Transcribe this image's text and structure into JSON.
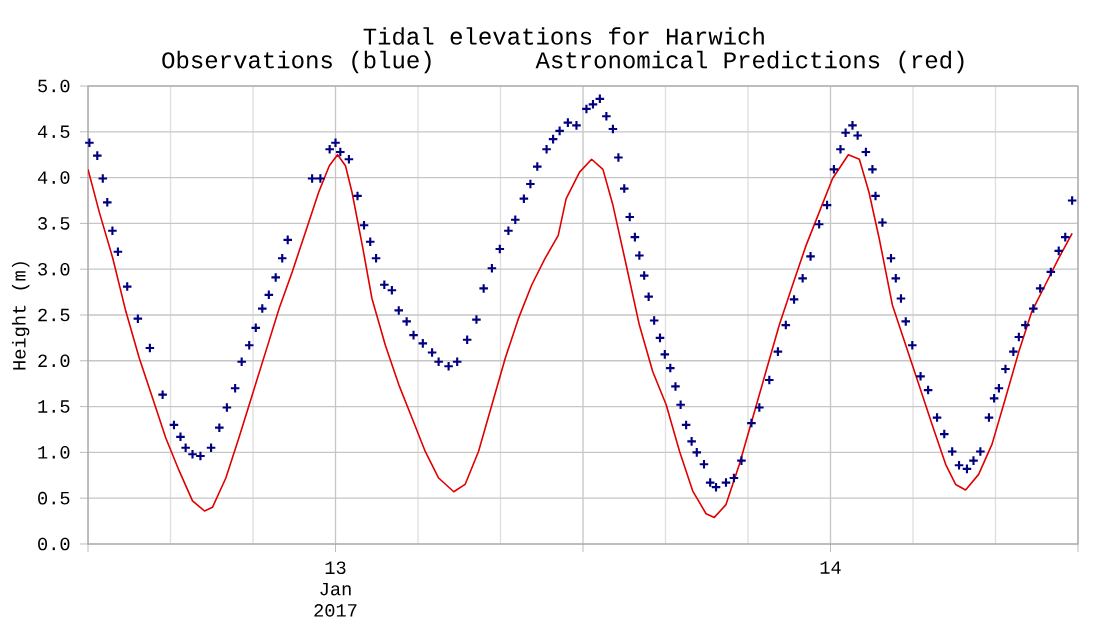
{
  "chart_data": {
    "type": "line",
    "title": "Tidal elevations for Harwich",
    "subtitle": "Observations (blue)       Astronomical Predictions (red)",
    "ylabel": "Height (m)",
    "xlim": [
      "2017-01-12T12:00",
      "2017-01-14T12:00"
    ],
    "xticks": [
      {
        "value": "2017-01-12T12:00",
        "label": null
      },
      {
        "value": "2017-01-13T00:00",
        "label": "13 Jan 2017"
      },
      {
        "value": "2017-01-13T12:00",
        "label": null
      },
      {
        "value": "2017-01-14T00:00",
        "label": "14"
      },
      {
        "value": "2017-01-14T12:00",
        "label": null
      }
    ],
    "ylim": [
      0,
      5
    ],
    "yticks": [
      {
        "value": 0,
        "label": "0.0"
      },
      {
        "value": 0.5,
        "label": "0.5"
      },
      {
        "value": 1,
        "label": "1.0"
      },
      {
        "value": 1.5,
        "label": "1.5"
      },
      {
        "value": 2,
        "label": "2.0"
      },
      {
        "value": 2.5,
        "label": "2.5"
      },
      {
        "value": 3,
        "label": "3.0"
      },
      {
        "value": 3.5,
        "label": "3.5"
      },
      {
        "value": 4,
        "label": "4.0"
      },
      {
        "value": 4.5,
        "label": "4.5"
      },
      {
        "value": 5,
        "label": "5.0"
      }
    ],
    "grid": true,
    "series": [
      {
        "type": "scatter",
        "marker": "cross",
        "color": "#000080",
        "x": [
          "2017-01-12T12:04",
          "2017-01-12T12:27",
          "2017-01-12T12:43",
          "2017-01-12T12:56",
          "2017-01-12T13:11",
          "2017-01-12T13:27",
          "2017-01-12T13:54",
          "2017-01-12T14:25",
          "2017-01-12T15:00",
          "2017-01-12T15:37",
          "2017-01-12T16:10",
          "2017-01-12T16:29",
          "2017-01-12T16:44",
          "2017-01-12T17:04",
          "2017-01-12T17:27",
          "2017-01-12T17:58",
          "2017-01-12T18:22",
          "2017-01-12T18:44",
          "2017-01-12T19:08",
          "2017-01-12T19:27",
          "2017-01-12T19:49",
          "2017-01-12T20:08",
          "2017-01-12T20:27",
          "2017-01-12T20:46",
          "2017-01-12T21:06",
          "2017-01-12T21:25",
          "2017-01-12T21:41",
          "2017-01-12T22:52",
          "2017-01-12T23:16",
          "2017-01-12T23:43",
          "2017-01-13T00:00",
          "2017-01-13T00:14",
          "2017-01-13T00:39",
          "2017-01-13T01:04",
          "2017-01-13T01:23",
          "2017-01-13T01:41",
          "2017-01-13T01:58",
          "2017-01-13T02:22",
          "2017-01-13T02:44",
          "2017-01-13T03:04",
          "2017-01-13T03:27",
          "2017-01-13T03:47",
          "2017-01-13T04:14",
          "2017-01-13T04:41",
          "2017-01-13T05:00",
          "2017-01-13T05:29",
          "2017-01-13T05:54",
          "2017-01-13T06:23",
          "2017-01-13T06:50",
          "2017-01-13T07:11",
          "2017-01-13T07:35",
          "2017-01-13T07:58",
          "2017-01-13T08:23",
          "2017-01-13T08:43",
          "2017-01-13T09:08",
          "2017-01-13T09:27",
          "2017-01-13T09:47",
          "2017-01-13T10:14",
          "2017-01-13T10:33",
          "2017-01-13T10:52",
          "2017-01-13T11:16",
          "2017-01-13T11:41",
          "2017-01-13T12:10",
          "2017-01-13T12:29",
          "2017-01-13T12:49",
          "2017-01-13T13:08",
          "2017-01-13T13:27",
          "2017-01-13T13:43",
          "2017-01-13T14:00",
          "2017-01-13T14:16",
          "2017-01-13T14:31",
          "2017-01-13T14:44",
          "2017-01-13T14:58",
          "2017-01-13T15:11",
          "2017-01-13T15:27",
          "2017-01-13T15:44",
          "2017-01-13T15:58",
          "2017-01-13T16:14",
          "2017-01-13T16:29",
          "2017-01-13T16:44",
          "2017-01-13T17:00",
          "2017-01-13T17:16",
          "2017-01-13T17:31",
          "2017-01-13T17:52",
          "2017-01-13T18:10",
          "2017-01-13T18:27",
          "2017-01-13T18:56",
          "2017-01-13T19:19",
          "2017-01-13T19:41",
          "2017-01-13T20:10",
          "2017-01-13T20:33",
          "2017-01-13T21:02",
          "2017-01-13T21:27",
          "2017-01-13T21:50",
          "2017-01-13T22:14",
          "2017-01-13T22:39",
          "2017-01-13T23:02",
          "2017-01-13T23:27",
          "2017-01-13T23:50",
          "2017-01-14T00:10",
          "2017-01-14T00:29",
          "2017-01-14T00:44",
          "2017-01-14T01:04",
          "2017-01-14T01:19",
          "2017-01-14T01:43",
          "2017-01-14T02:02",
          "2017-01-14T02:11",
          "2017-01-14T02:31",
          "2017-01-14T02:56",
          "2017-01-14T03:10",
          "2017-01-14T03:25",
          "2017-01-14T03:39",
          "2017-01-14T03:58",
          "2017-01-14T04:22",
          "2017-01-14T04:44",
          "2017-01-14T05:10",
          "2017-01-14T05:31",
          "2017-01-14T05:54",
          "2017-01-14T06:14",
          "2017-01-14T06:37",
          "2017-01-14T06:56",
          "2017-01-14T07:16",
          "2017-01-14T07:41",
          "2017-01-14T07:56",
          "2017-01-14T08:10",
          "2017-01-14T08:29",
          "2017-01-14T08:52",
          "2017-01-14T09:08",
          "2017-01-14T09:27",
          "2017-01-14T09:50",
          "2017-01-14T10:10",
          "2017-01-14T10:41",
          "2017-01-14T11:04",
          "2017-01-14T11:23",
          "2017-01-14T11:43"
        ],
        "values": [
          4.38,
          4.24,
          3.99,
          3.73,
          3.42,
          3.19,
          2.81,
          2.46,
          2.14,
          1.63,
          1.3,
          1.17,
          1.05,
          0.98,
          0.96,
          1.05,
          1.27,
          1.49,
          1.7,
          1.99,
          2.17,
          2.36,
          2.57,
          2.72,
          2.91,
          3.12,
          3.32,
          3.99,
          3.99,
          4.31,
          4.38,
          4.28,
          4.2,
          3.8,
          3.48,
          3.3,
          3.12,
          2.83,
          2.77,
          2.55,
          2.43,
          2.28,
          2.19,
          2.09,
          1.99,
          1.94,
          1.99,
          2.23,
          2.45,
          2.79,
          3.01,
          3.22,
          3.42,
          3.54,
          3.77,
          3.93,
          4.12,
          4.31,
          4.42,
          4.51,
          4.6,
          4.57,
          4.75,
          4.8,
          4.86,
          4.67,
          4.53,
          4.22,
          3.88,
          3.57,
          3.35,
          3.15,
          2.93,
          2.7,
          2.44,
          2.25,
          2.07,
          1.92,
          1.72,
          1.52,
          1.3,
          1.12,
          1.0,
          0.87,
          0.67,
          0.62,
          0.67,
          0.72,
          0.91,
          1.32,
          1.49,
          1.79,
          2.1,
          2.39,
          2.67,
          2.9,
          3.14,
          3.49,
          3.7,
          4.09,
          4.31,
          4.49,
          4.57,
          4.46,
          4.28,
          4.09,
          3.8,
          3.51,
          3.12,
          2.9,
          2.68,
          2.43,
          2.17,
          1.83,
          1.68,
          1.38,
          1.2,
          1.01,
          0.86,
          0.82,
          0.91,
          1.01,
          1.38,
          1.59,
          1.7,
          1.91,
          2.1,
          2.26,
          2.39,
          2.57,
          2.79,
          2.97,
          3.2,
          3.35,
          3.75
        ]
      },
      {
        "color": "#e00000",
        "x": [
          "2017-01-12T12:00",
          "2017-01-12T12:33",
          "2017-01-12T13:12",
          "2017-01-12T13:50",
          "2017-01-12T14:29",
          "2017-01-12T15:08",
          "2017-01-12T15:46",
          "2017-01-12T16:25",
          "2017-01-12T17:04",
          "2017-01-12T17:39",
          "2017-01-12T18:02",
          "2017-01-12T18:41",
          "2017-01-12T19:19",
          "2017-01-12T19:58",
          "2017-01-12T20:37",
          "2017-01-12T21:16",
          "2017-01-12T21:54",
          "2017-01-12T22:33",
          "2017-01-12T23:11",
          "2017-01-12T23:42",
          "2017-01-13T00:06",
          "2017-01-13T00:29",
          "2017-01-13T00:48",
          "2017-01-13T01:18",
          "2017-01-13T01:46",
          "2017-01-13T02:25",
          "2017-01-13T03:04",
          "2017-01-13T03:42",
          "2017-01-13T04:21",
          "2017-01-13T05:00",
          "2017-01-13T05:44",
          "2017-01-13T06:17",
          "2017-01-13T06:56",
          "2017-01-13T07:35",
          "2017-01-13T08:14",
          "2017-01-13T08:52",
          "2017-01-13T09:31",
          "2017-01-13T10:10",
          "2017-01-13T10:48",
          "2017-01-13T11:11",
          "2017-01-13T11:50",
          "2017-01-13T12:25",
          "2017-01-13T12:58",
          "2017-01-13T13:27",
          "2017-01-13T14:06",
          "2017-01-13T14:44",
          "2017-01-13T15:23",
          "2017-01-13T16:02",
          "2017-01-13T16:41",
          "2017-01-13T17:19",
          "2017-01-13T17:58",
          "2017-01-13T18:22",
          "2017-01-13T18:56",
          "2017-01-13T19:35",
          "2017-01-13T20:14",
          "2017-01-13T20:52",
          "2017-01-13T21:31",
          "2017-01-13T22:10",
          "2017-01-13T22:49",
          "2017-01-13T23:27",
          "2017-01-14T00:06",
          "2017-01-14T00:52",
          "2017-01-14T01:24",
          "2017-01-14T01:52",
          "2017-01-14T02:22",
          "2017-01-14T03:00",
          "2017-01-14T03:39",
          "2017-01-14T04:17",
          "2017-01-14T04:56",
          "2017-01-14T05:35",
          "2017-01-14T06:04",
          "2017-01-14T06:33",
          "2017-01-14T07:11",
          "2017-01-14T07:50",
          "2017-01-14T08:29",
          "2017-01-14T09:08",
          "2017-01-14T09:46",
          "2017-01-14T10:25",
          "2017-01-14T11:04",
          "2017-01-14T11:43"
        ],
        "values": [
          4.09,
          3.62,
          3.12,
          2.54,
          2.03,
          1.59,
          1.16,
          0.8,
          0.47,
          0.36,
          0.4,
          0.72,
          1.16,
          1.63,
          2.1,
          2.57,
          2.97,
          3.41,
          3.84,
          4.13,
          4.25,
          4.13,
          3.84,
          3.26,
          2.68,
          2.17,
          1.74,
          1.38,
          1.01,
          0.72,
          0.57,
          0.65,
          1.01,
          1.52,
          2.03,
          2.46,
          2.83,
          3.12,
          3.37,
          3.77,
          4.06,
          4.2,
          4.09,
          3.7,
          3.04,
          2.39,
          1.88,
          1.52,
          1.01,
          0.58,
          0.33,
          0.29,
          0.43,
          0.87,
          1.38,
          1.88,
          2.39,
          2.83,
          3.26,
          3.62,
          3.99,
          4.25,
          4.2,
          3.84,
          3.33,
          2.61,
          2.17,
          1.74,
          1.3,
          0.87,
          0.65,
          0.59,
          0.76,
          1.09,
          1.59,
          2.1,
          2.54,
          2.83,
          3.12,
          3.39
        ]
      }
    ]
  }
}
